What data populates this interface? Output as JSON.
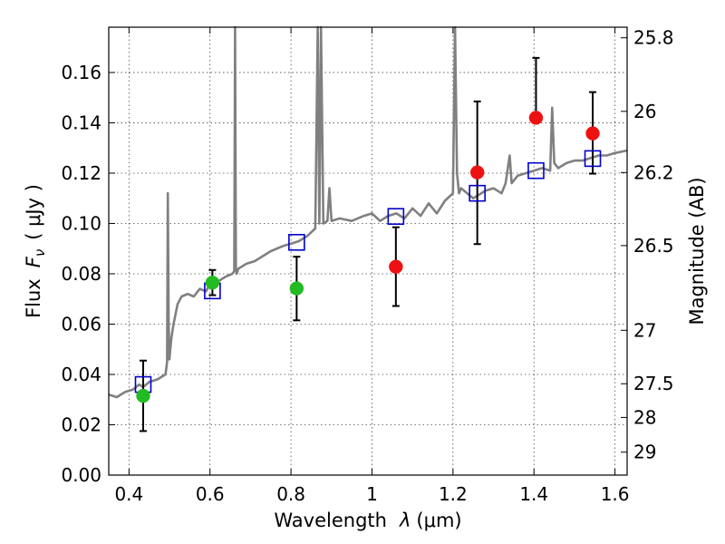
{
  "chart_data": {
    "type": "scatter",
    "xlabel_prefix": "Wavelength",
    "xlabel_symbol": "λ",
    "xlabel_unit": "(μm)",
    "ylabel_prefix": "Flux",
    "ylabel_symbol": "F",
    "ylabel_subscript": "ν",
    "ylabel_unit": "( μJy )",
    "y2label": "Magnitude (AB)",
    "xlim": [
      0.35,
      1.63
    ],
    "ylim": [
      0.0,
      0.178
    ],
    "grid": true,
    "x_ticks": [
      0.4,
      0.6,
      0.8,
      1.0,
      1.2,
      1.4,
      1.6
    ],
    "x_tick_labels": [
      "0.4",
      "0.6",
      "0.8",
      "1",
      "1.2",
      "1.4",
      "1.6"
    ],
    "y_ticks": [
      0.0,
      0.02,
      0.04,
      0.06,
      0.08,
      0.1,
      0.12,
      0.14,
      0.16
    ],
    "y_tick_labels": [
      "0.00",
      "0.02",
      "0.04",
      "0.06",
      "0.08",
      "0.10",
      "0.12",
      "0.14",
      "0.16"
    ],
    "mag_ticks": [
      25.8,
      26,
      26.2,
      26.5,
      27,
      27.5,
      28,
      29
    ],
    "mag_tick_labels": [
      "25.8",
      "26",
      "26.2",
      "26.5",
      "27",
      "27.5",
      "28",
      "29"
    ],
    "series": [
      {
        "marker": "circle",
        "color": "#22bb22",
        "x": [
          0.435,
          0.606,
          0.814
        ],
        "y": [
          0.0315,
          0.0765,
          0.0742
        ],
        "yerr_low": [
          0.0175,
          0.0715,
          0.0615
        ],
        "yerr_high": [
          0.0455,
          0.0815,
          0.0868
        ]
      },
      {
        "marker": "circle",
        "color": "#ee1111",
        "x": [
          1.059,
          1.26,
          1.405,
          1.545
        ],
        "y": [
          0.0828,
          0.1203,
          0.142,
          0.1358
        ],
        "yerr_low": [
          0.0672,
          0.0918,
          null,
          0.1198
        ],
        "yerr_high": [
          0.0985,
          0.1485,
          0.1658,
          0.1522
        ]
      },
      {
        "marker": "open-square",
        "color": "#0000cc",
        "x": [
          0.435,
          0.606,
          0.814,
          1.059,
          1.26,
          1.405,
          1.545
        ],
        "y": [
          0.036,
          0.0732,
          0.0925,
          0.1028,
          0.112,
          0.121,
          0.1258
        ]
      },
      {
        "marker": "line",
        "color": "#808080",
        "x": [
          0.35,
          0.37,
          0.39,
          0.41,
          0.425,
          0.435,
          0.45,
          0.47,
          0.48,
          0.49,
          0.494,
          0.496,
          0.498,
          0.5,
          0.502,
          0.505,
          0.51,
          0.515,
          0.52,
          0.53,
          0.545,
          0.56,
          0.575,
          0.59,
          0.6,
          0.62,
          0.64,
          0.655,
          0.66,
          0.662,
          0.664,
          0.666,
          0.67,
          0.69,
          0.71,
          0.73,
          0.75,
          0.78,
          0.8,
          0.82,
          0.84,
          0.86,
          0.866,
          0.87,
          0.874,
          0.88,
          0.89,
          0.895,
          0.9,
          0.92,
          0.95,
          0.98,
          1.0,
          1.02,
          1.04,
          1.06,
          1.08,
          1.1,
          1.12,
          1.14,
          1.16,
          1.18,
          1.2,
          1.205,
          1.21,
          1.215,
          1.22,
          1.25,
          1.28,
          1.3,
          1.32,
          1.33,
          1.34,
          1.345,
          1.36,
          1.38,
          1.4,
          1.42,
          1.44,
          1.445,
          1.45,
          1.46,
          1.48,
          1.5,
          1.52,
          1.54,
          1.56,
          1.58,
          1.6,
          1.63
        ],
        "y": [
          0.032,
          0.031,
          0.033,
          0.034,
          0.036,
          0.035,
          0.037,
          0.038,
          0.039,
          0.04,
          0.045,
          0.112,
          0.06,
          0.046,
          0.05,
          0.055,
          0.06,
          0.064,
          0.068,
          0.071,
          0.072,
          0.071,
          0.074,
          0.073,
          0.076,
          0.077,
          0.079,
          0.08,
          0.081,
          0.178,
          0.082,
          0.08,
          0.082,
          0.084,
          0.085,
          0.087,
          0.089,
          0.091,
          0.092,
          0.093,
          0.095,
          0.098,
          0.178,
          0.1,
          0.178,
          0.1,
          0.101,
          0.114,
          0.101,
          0.102,
          0.101,
          0.103,
          0.104,
          0.101,
          0.103,
          0.104,
          0.102,
          0.106,
          0.103,
          0.108,
          0.104,
          0.109,
          0.112,
          0.178,
          0.12,
          0.112,
          0.114,
          0.11,
          0.113,
          0.114,
          0.112,
          0.116,
          0.127,
          0.116,
          0.119,
          0.12,
          0.121,
          0.122,
          0.121,
          0.146,
          0.124,
          0.122,
          0.124,
          0.125,
          0.125,
          0.126,
          0.127,
          0.127,
          0.128,
          0.129
        ]
      }
    ]
  }
}
